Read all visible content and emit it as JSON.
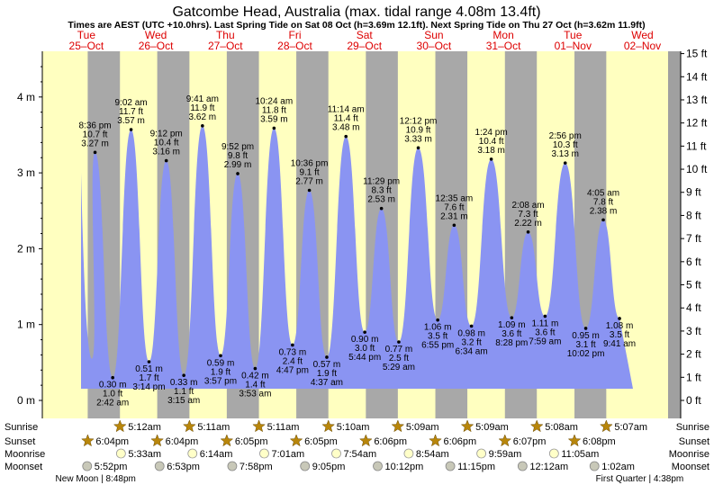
{
  "header": {
    "title": "Gatcombe Head, Australia (max. tidal range 4.08m 13.4ft)",
    "subtitle": "Times are AEST (UTC +10.0hrs). Last Spring Tide on Sat 08 Oct (h=3.69m 12.1ft). Next Spring Tide on Thu 27 Oct (h=3.62m 11.9ft)"
  },
  "colors": {
    "day_bg": "#ffffc0",
    "night_bg": "#a8a8a8",
    "tide_fill": "#8a94f2",
    "date_red": "#dd0000",
    "star": "#b8860b"
  },
  "row_labels": [
    "Sunrise",
    "Sunset",
    "Moonrise",
    "Moonset"
  ],
  "chart_data": {
    "type": "area",
    "title": "Gatcombe Head, Australia (max. tidal range 4.08m 13.4ft)",
    "y_left": {
      "unit": "m",
      "range": [
        -0.3,
        4.6
      ],
      "ticks": [
        "0 m",
        "1 m",
        "2 m",
        "3 m",
        "4 m"
      ]
    },
    "y_right": {
      "unit": "ft",
      "ticks": [
        "0 ft",
        "1 ft",
        "2 ft",
        "3 ft",
        "4 ft",
        "5 ft",
        "6 ft",
        "7 ft",
        "8 ft",
        "9 ft",
        "10 ft",
        "11 ft",
        "12 ft",
        "13 ft",
        "14 ft",
        "15 ft"
      ]
    },
    "grid": false,
    "x_start": "2022-10-25 00:00",
    "days": [
      {
        "dow": "Tue",
        "date": "25–Oct"
      },
      {
        "dow": "Wed",
        "date": "26–Oct"
      },
      {
        "dow": "Thu",
        "date": "27–Oct"
      },
      {
        "dow": "Fri",
        "date": "28–Oct"
      },
      {
        "dow": "Sat",
        "date": "29–Oct"
      },
      {
        "dow": "Sun",
        "date": "30–Oct"
      },
      {
        "dow": "Mon",
        "date": "31–Oct"
      },
      {
        "dow": "Tue",
        "date": "01–Nov"
      },
      {
        "dow": "Wed",
        "date": "02–Nov"
      }
    ],
    "tides": [
      {
        "type": "high",
        "time": "8:36 pm",
        "day": 0,
        "ft": "10.7 ft",
        "m": "3.27 m",
        "h": 3.27
      },
      {
        "type": "low",
        "time": "2:42 am",
        "day": 1,
        "ft": "1.0 ft",
        "m": "0.30 m",
        "h": 0.3
      },
      {
        "type": "high",
        "time": "9:02 am",
        "day": 1,
        "ft": "11.7 ft",
        "m": "3.57 m",
        "h": 3.57
      },
      {
        "type": "low",
        "time": "3:14 pm",
        "day": 1,
        "ft": "1.7 ft",
        "m": "0.51 m",
        "h": 0.51
      },
      {
        "type": "high",
        "time": "9:12 pm",
        "day": 1,
        "ft": "10.4 ft",
        "m": "3.16 m",
        "h": 3.16
      },
      {
        "type": "low",
        "time": "3:15 am",
        "day": 2,
        "ft": "1.1 ft",
        "m": "0.33 m",
        "h": 0.33
      },
      {
        "type": "high",
        "time": "9:41 am",
        "day": 2,
        "ft": "11.9 ft",
        "m": "3.62 m",
        "h": 3.62
      },
      {
        "type": "low",
        "time": "3:57 pm",
        "day": 2,
        "ft": "1.9 ft",
        "m": "0.59 m",
        "h": 0.59
      },
      {
        "type": "high",
        "time": "9:52 pm",
        "day": 2,
        "ft": "9.8 ft",
        "m": "2.99 m",
        "h": 2.99
      },
      {
        "type": "low",
        "time": "3:53 am",
        "day": 3,
        "ft": "1.4 ft",
        "m": "0.42 m",
        "h": 0.42
      },
      {
        "type": "high",
        "time": "10:24 am",
        "day": 3,
        "ft": "11.8 ft",
        "m": "3.59 m",
        "h": 3.59
      },
      {
        "type": "low",
        "time": "4:47 pm",
        "day": 3,
        "ft": "2.4 ft",
        "m": "0.73 m",
        "h": 0.73
      },
      {
        "type": "high",
        "time": "10:36 pm",
        "day": 3,
        "ft": "9.1 ft",
        "m": "2.77 m",
        "h": 2.77
      },
      {
        "type": "low",
        "time": "4:37 am",
        "day": 4,
        "ft": "1.9 ft",
        "m": "0.57 m",
        "h": 0.57
      },
      {
        "type": "high",
        "time": "11:14 am",
        "day": 4,
        "ft": "11.4 ft",
        "m": "3.48 m",
        "h": 3.48
      },
      {
        "type": "low",
        "time": "5:44 pm",
        "day": 4,
        "ft": "3.0 ft",
        "m": "0.90 m",
        "h": 0.9
      },
      {
        "type": "high",
        "time": "11:29 pm",
        "day": 4,
        "ft": "8.3 ft",
        "m": "2.53 m",
        "h": 2.53
      },
      {
        "type": "low",
        "time": "5:29 am",
        "day": 5,
        "ft": "2.5 ft",
        "m": "0.77 m",
        "h": 0.77
      },
      {
        "type": "high",
        "time": "12:12 pm",
        "day": 5,
        "ft": "10.9 ft",
        "m": "3.33 m",
        "h": 3.33
      },
      {
        "type": "low",
        "time": "6:55 pm",
        "day": 5,
        "ft": "3.5 ft",
        "m": "1.06 m",
        "h": 1.06
      },
      {
        "type": "high",
        "time": "12:35 am",
        "day": 6,
        "ft": "7.6 ft",
        "m": "2.31 m",
        "h": 2.31
      },
      {
        "type": "low",
        "time": "6:34 am",
        "day": 6,
        "ft": "3.2 ft",
        "m": "0.98 m",
        "h": 0.98
      },
      {
        "type": "high",
        "time": "1:24 pm",
        "day": 6,
        "ft": "10.4 ft",
        "m": "3.18 m",
        "h": 3.18
      },
      {
        "type": "low",
        "time": "8:28 pm",
        "day": 6,
        "ft": "3.6 ft",
        "m": "1.09 m",
        "h": 1.09
      },
      {
        "type": "high",
        "time": "2:08 am",
        "day": 7,
        "ft": "7.3 ft",
        "m": "2.22 m",
        "h": 2.22
      },
      {
        "type": "low",
        "time": "7:59 am",
        "day": 7,
        "ft": "3.6 ft",
        "m": "1.11 m",
        "h": 1.11
      },
      {
        "type": "high",
        "time": "2:56 pm",
        "day": 7,
        "ft": "10.3 ft",
        "m": "3.13 m",
        "h": 3.13
      },
      {
        "type": "low",
        "time": "10:02 pm",
        "day": 7,
        "ft": "3.1 ft",
        "m": "0.95 m",
        "h": 0.95
      },
      {
        "type": "high",
        "time": "4:05 am",
        "day": 8,
        "ft": "7.8 ft",
        "m": "2.38 m",
        "h": 2.38
      },
      {
        "type": "low",
        "time": "9:41 am",
        "day": 8,
        "ft": "3.5 ft",
        "m": "1.08 m",
        "h": 1.08
      }
    ],
    "sun_times": [
      {
        "rise": "",
        "set": "6:04pm"
      },
      {
        "rise": "5:12am",
        "set": "6:04pm"
      },
      {
        "rise": "5:11am",
        "set": "6:05pm"
      },
      {
        "rise": "5:11am",
        "set": "6:05pm"
      },
      {
        "rise": "5:10am",
        "set": "6:06pm"
      },
      {
        "rise": "5:09am",
        "set": "6:06pm"
      },
      {
        "rise": "5:09am",
        "set": "6:07pm"
      },
      {
        "rise": "5:08am",
        "set": "6:08pm"
      },
      {
        "rise": "5:07am",
        "set": ""
      }
    ],
    "moonrise": [
      {
        "day": 1,
        "time": "5:33am"
      },
      {
        "day": 2,
        "time": "6:14am"
      },
      {
        "day": 3,
        "time": "7:01am"
      },
      {
        "day": 4,
        "time": "7:54am"
      },
      {
        "day": 5,
        "time": "8:54am"
      },
      {
        "day": 6,
        "time": "9:59am"
      },
      {
        "day": 7,
        "time": "11:05am"
      }
    ],
    "moonset": [
      {
        "day": 0,
        "time": "5:52pm"
      },
      {
        "day": 1,
        "time": "6:53pm"
      },
      {
        "day": 2,
        "time": "7:58pm"
      },
      {
        "day": 3,
        "time": "9:05pm"
      },
      {
        "day": 4,
        "time": "10:12pm"
      },
      {
        "day": 5,
        "time": "11:15pm"
      },
      {
        "day": 7,
        "time": "12:12am"
      },
      {
        "day": 8,
        "time": "1:02am"
      }
    ],
    "moon_phases": [
      {
        "day": 0,
        "label": "New Moon",
        "time": "8:48pm"
      },
      {
        "day": 8,
        "label": "First Quarter",
        "time": "4:38pm"
      }
    ]
  }
}
